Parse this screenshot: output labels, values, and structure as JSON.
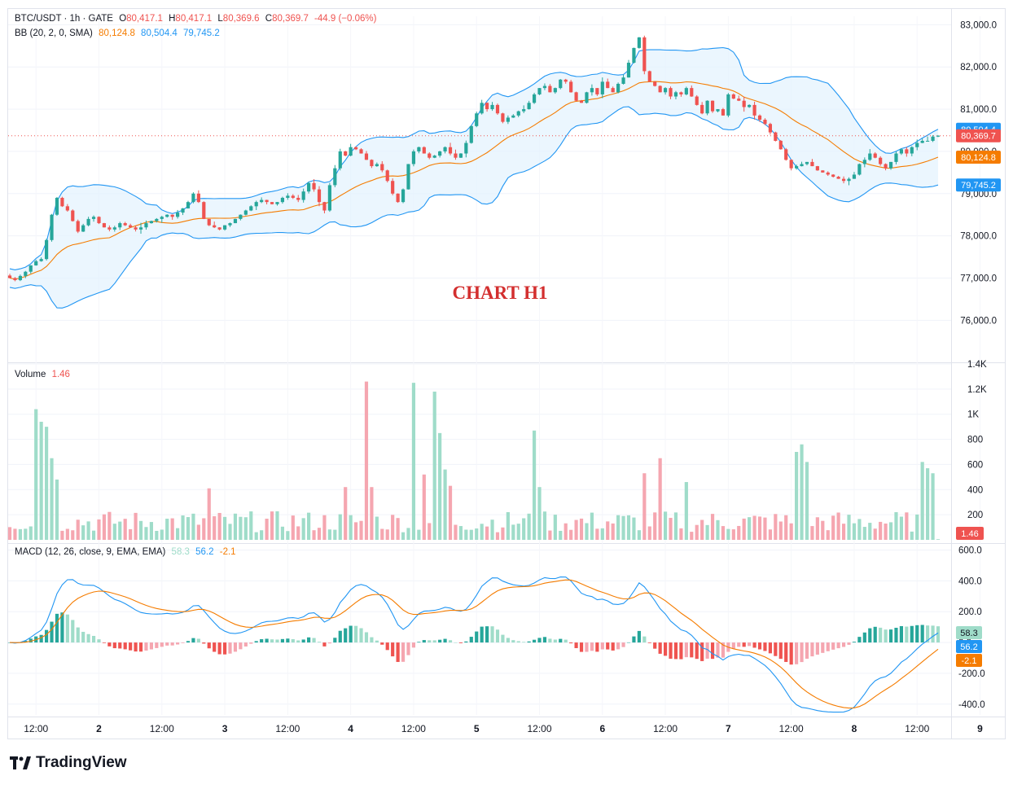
{
  "header": {
    "symbol": "BTC/USDT · 1h · GATE",
    "open_label": "O",
    "open": "80,417.1",
    "high_label": "H",
    "high": "80,417.1",
    "low_label": "L",
    "low": "80,369.6",
    "close_label": "C",
    "close": "80,369.7",
    "change": "-44.9 (−0.06%)"
  },
  "bb_legend": {
    "label": "BB (20, 2, 0, SMA)",
    "basis": "80,124.8",
    "upper": "80,504.4",
    "lower": "79,745.2"
  },
  "volume_legend": {
    "label": "Volume",
    "value": "1.46"
  },
  "macd_legend": {
    "label": "MACD (12, 26, close, 9, EMA, EMA)",
    "hist": "58.3",
    "macd": "56.2",
    "signal": "-2.1"
  },
  "overlay_text": "CHART H1",
  "brand": "TradingView",
  "colors": {
    "up": "#26a69a",
    "down": "#ef5350",
    "up_vol": "#9fdcc9",
    "down_vol": "#f5a6b0",
    "bb_basis": "#f57c00",
    "bb_band": "#2196f3",
    "bb_fill": "#e3f2fd",
    "macd_line": "#2196f3",
    "signal_line": "#f57c00",
    "overlay": "#d32f2f",
    "text": "#131722",
    "muted": "#787b86"
  },
  "chart_data": [
    {
      "type": "candlestick",
      "title": "BTC/USDT · 1h · GATE",
      "ylim": [
        75100,
        83200
      ],
      "y_ticks": [
        "83,000.0",
        "82,000.0",
        "81,000.0",
        "80,000.0",
        "79,000.0",
        "78,000.0",
        "77,000.0",
        "76,000.0"
      ],
      "y_tick_values": [
        83000,
        82000,
        81000,
        80000,
        79000,
        78000,
        77000,
        76000
      ],
      "x_ticks": [
        "12:00",
        "2",
        "12:00",
        "3",
        "12:00",
        "4",
        "12:00",
        "5",
        "12:00",
        "6",
        "12:00",
        "7",
        "12:00",
        "8",
        "12:00",
        "9"
      ],
      "x_tick_index": [
        5,
        17,
        29,
        41,
        53,
        65,
        77,
        89,
        101,
        113,
        125,
        137,
        149,
        161,
        173,
        185
      ],
      "x_tick_bold": [
        false,
        true,
        false,
        true,
        false,
        true,
        false,
        true,
        false,
        true,
        false,
        true,
        false,
        true,
        false,
        true
      ],
      "closes": [
        77000,
        76950,
        77050,
        77150,
        77300,
        77400,
        77450,
        77900,
        78500,
        78900,
        78700,
        78600,
        78350,
        78100,
        78250,
        78400,
        78450,
        78300,
        78200,
        78150,
        78200,
        78300,
        78250,
        78200,
        78150,
        78200,
        78300,
        78350,
        78400,
        78450,
        78500,
        78450,
        78550,
        78650,
        78800,
        79000,
        78800,
        78400,
        78250,
        78200,
        78150,
        78250,
        78300,
        78400,
        78500,
        78600,
        78700,
        78800,
        78850,
        78800,
        78750,
        78800,
        78900,
        78950,
        78900,
        78850,
        79050,
        79250,
        79100,
        78800,
        78600,
        79200,
        79600,
        80000,
        79900,
        80100,
        80050,
        79950,
        79800,
        79650,
        79700,
        79550,
        79300,
        79000,
        78800,
        79100,
        79700,
        80000,
        80100,
        79950,
        79850,
        79900,
        80000,
        80100,
        79950,
        79850,
        79950,
        80200,
        80600,
        80900,
        81150,
        81000,
        81100,
        80900,
        80700,
        80800,
        80850,
        80950,
        81000,
        81150,
        81350,
        81500,
        81550,
        81400,
        81500,
        81700,
        81650,
        81400,
        81200,
        81150,
        81400,
        81500,
        81350,
        81650,
        81500,
        81400,
        81600,
        81750,
        82100,
        82450,
        82700,
        81900,
        81650,
        81550,
        81400,
        81500,
        81300,
        81400,
        81350,
        81500,
        81300,
        81100,
        80900,
        81200,
        80950,
        81000,
        80850,
        81350,
        81250,
        81200,
        81050,
        81100,
        80850,
        80750,
        80650,
        80450,
        80250,
        80050,
        79800,
        79600,
        79650,
        79700,
        79750,
        79650,
        79550,
        79500,
        79450,
        79400,
        79350,
        79300,
        79350,
        79450,
        79700,
        79800,
        79950,
        79850,
        79700,
        79600,
        79750,
        79950,
        80050,
        79950,
        80100,
        80200,
        80250,
        80250,
        80350,
        80370
      ],
      "bb": {
        "basis_label": "80,124.8",
        "upper_label": "80,504.4",
        "lower_label": "79,745.2",
        "period": 20,
        "mult": 2
      },
      "last_price_label": "80,369.7"
    },
    {
      "type": "bar",
      "title": "Volume",
      "ylim": [
        0,
        1400
      ],
      "y_ticks": [
        "1.4K",
        "1.2K",
        "1K",
        "800",
        "600",
        "400",
        "200"
      ],
      "y_tick_values": [
        1400,
        1200,
        1000,
        800,
        600,
        400,
        200
      ],
      "spikes": [
        [
          5,
          1040
        ],
        [
          6,
          940
        ],
        [
          7,
          900
        ],
        [
          8,
          650
        ],
        [
          9,
          480
        ],
        [
          38,
          410
        ],
        [
          64,
          420
        ],
        [
          68,
          1260
        ],
        [
          69,
          420
        ],
        [
          77,
          1250
        ],
        [
          79,
          520
        ],
        [
          81,
          1180
        ],
        [
          82,
          850
        ],
        [
          83,
          560
        ],
        [
          84,
          430
        ],
        [
          100,
          870
        ],
        [
          101,
          420
        ],
        [
          121,
          530
        ],
        [
          124,
          650
        ],
        [
          129,
          460
        ],
        [
          150,
          700
        ],
        [
          151,
          760
        ],
        [
          152,
          620
        ],
        [
          174,
          620
        ],
        [
          175,
          570
        ],
        [
          176,
          530
        ]
      ],
      "last_value_label": "1.46"
    },
    {
      "type": "line",
      "title": "MACD (12, 26, close, 9, EMA, EMA)",
      "ylim": [
        -470,
        640
      ],
      "y_ticks": [
        "600.0",
        "400.0",
        "200.0",
        "0.0",
        "-200.0",
        "-400.0"
      ],
      "y_tick_values": [
        600,
        400,
        200,
        0,
        -200,
        -400
      ],
      "series": [
        {
          "name": "Histogram",
          "value_label": "58.3"
        },
        {
          "name": "MACD",
          "value_label": "56.2"
        },
        {
          "name": "Signal",
          "value_label": "-2.1"
        }
      ]
    }
  ]
}
